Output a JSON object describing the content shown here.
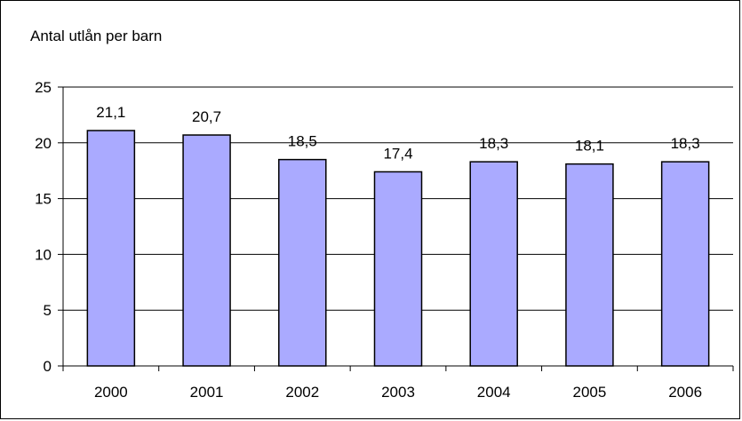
{
  "chart_data": {
    "type": "bar",
    "title": "Antal utlån per barn",
    "xlabel": "",
    "ylabel": "",
    "categories": [
      "2000",
      "2001",
      "2002",
      "2003",
      "2004",
      "2005",
      "2006"
    ],
    "values": [
      21.1,
      20.7,
      18.5,
      17.4,
      18.3,
      18.1,
      18.3
    ],
    "data_labels": [
      "21,1",
      "20,7",
      "18,5",
      "17,4",
      "18,3",
      "18,1",
      "18,3"
    ],
    "ylim": [
      0,
      25
    ],
    "yticks": [
      0,
      5,
      10,
      15,
      20,
      25
    ],
    "grid": true,
    "legend": "none",
    "colors": {
      "bar_fill": "#aaaaff",
      "bar_stroke": "#000000",
      "grid": "#000000"
    }
  }
}
